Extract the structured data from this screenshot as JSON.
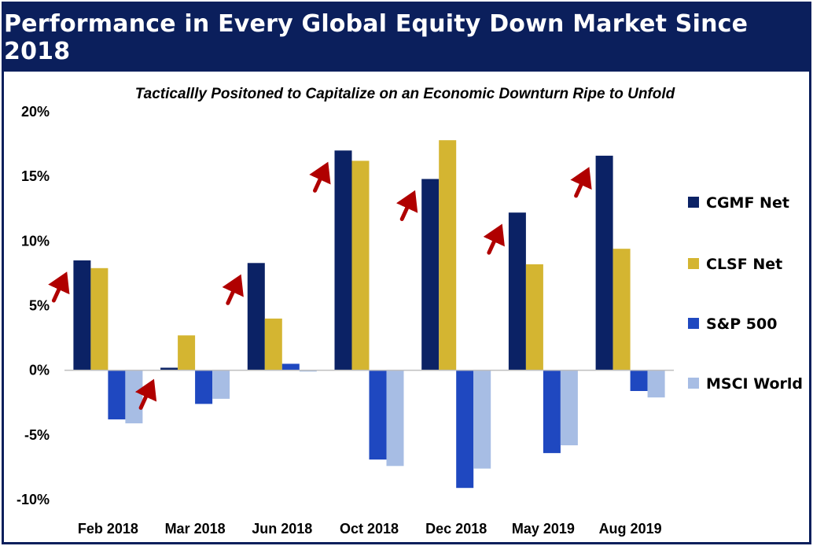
{
  "header": {
    "title": "Performance in Every Global Equity Down Market Since 2018"
  },
  "chart_data": {
    "type": "bar",
    "title": "Performance in Every Global Equity Down Market Since 2018",
    "subtitle": "Tacticallly Positoned to Capitalize on an Economic Downturn Ripe to Unfold",
    "xlabel": "",
    "ylabel": "",
    "ylim": [
      -10,
      20
    ],
    "yticks": [
      20,
      15,
      10,
      5,
      0,
      -5,
      -10
    ],
    "ytick_labels": [
      "20%",
      "15%",
      "10%",
      "5%",
      "0%",
      "-5%",
      "-10%"
    ],
    "categories": [
      "Feb 2018",
      "Mar 2018",
      "Jun 2018",
      "Oct 2018",
      "Dec 2018",
      "May 2019",
      "Aug 2019"
    ],
    "series": [
      {
        "name": "CGMF Net",
        "color": "#0b2265",
        "values": [
          8.5,
          0.2,
          8.3,
          17.0,
          14.8,
          12.2,
          16.6
        ]
      },
      {
        "name": "CLSF Net",
        "color": "#d4b531",
        "values": [
          7.9,
          2.7,
          4.0,
          16.2,
          17.8,
          8.2,
          9.4
        ]
      },
      {
        "name": "S&P 500",
        "color": "#1f48c0",
        "values": [
          -3.8,
          -2.6,
          0.5,
          -6.9,
          -9.1,
          -6.4,
          -1.6
        ]
      },
      {
        "name": "MSCI World",
        "color": "#a7bde4",
        "values": [
          -4.1,
          -2.2,
          -0.1,
          -7.4,
          -7.6,
          -5.8,
          -2.1
        ]
      }
    ],
    "legend_position": "right",
    "grid": false,
    "annotations": {
      "arrow_icon": "red-up-arrow-icon",
      "arrow_color": "#b00000",
      "count": 7
    }
  }
}
